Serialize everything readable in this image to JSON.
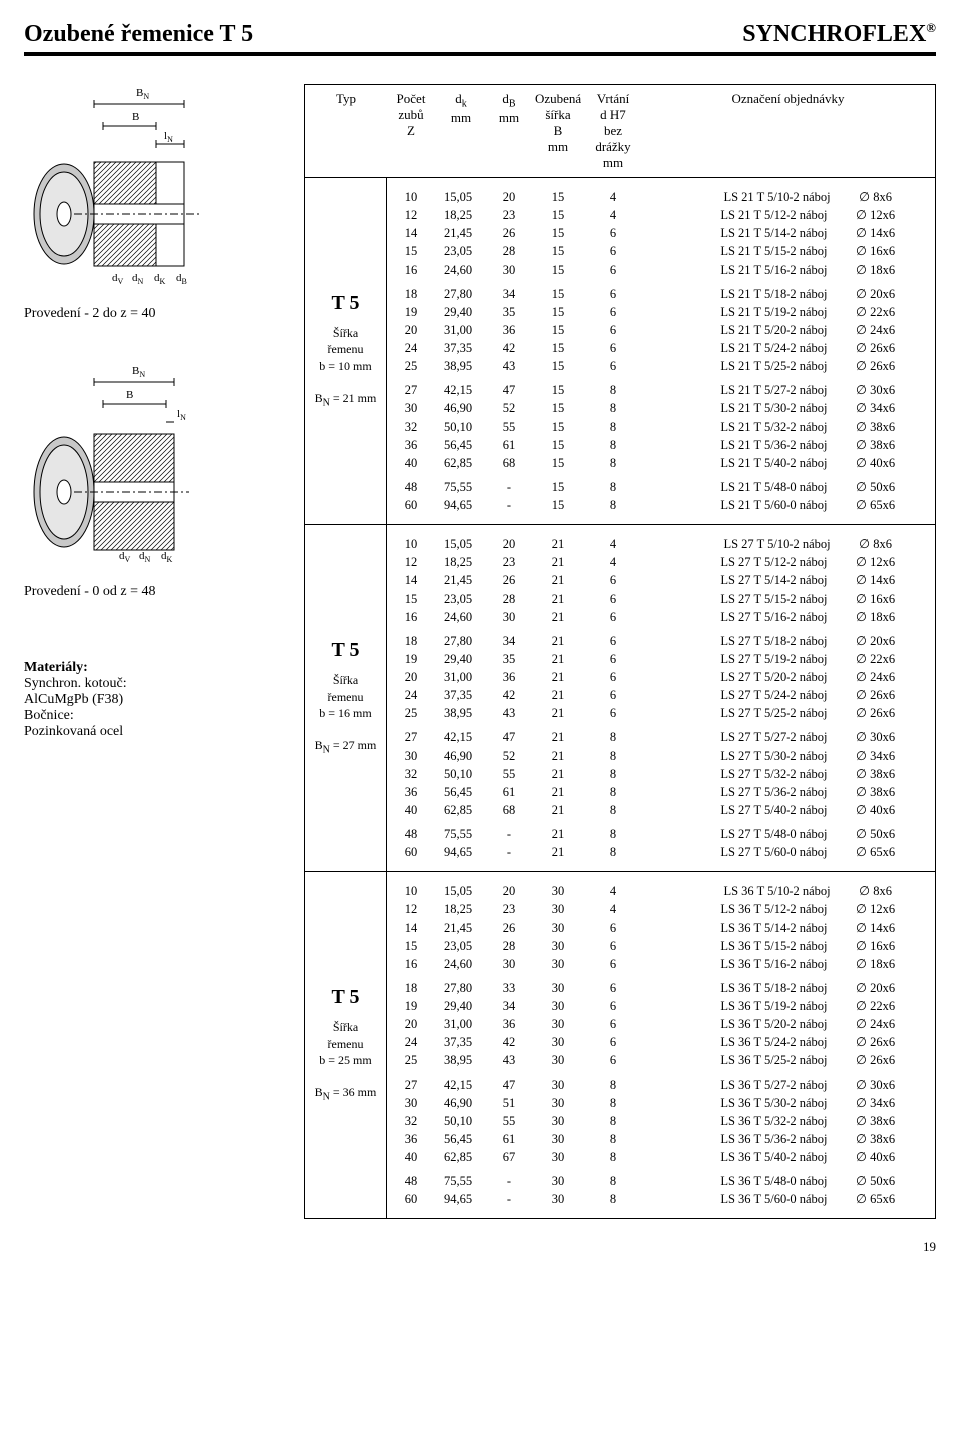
{
  "header": {
    "left": "Ozubené řemenice T 5",
    "right": "SYNCHROFLEX",
    "reg": "®"
  },
  "page_number": "19",
  "captions": {
    "prov2": "Provedení - 2 do z = 40",
    "prov0": "Provedení - 0 od z = 48"
  },
  "materials": {
    "title": "Materiály:",
    "l1": "Synchron. kotouč:",
    "l2": "AlCuMgPb (F38)",
    "l3": "Bočnice:",
    "l4": "Pozinkovaná ocel"
  },
  "diagram_labels": {
    "bn": "B",
    "bn_sub": "N",
    "b": "B",
    "ln": "l",
    "ln_sub": "N",
    "dv": "d",
    "dv_sub": "V",
    "dn": "d",
    "dn_sub": "N",
    "dk": "d",
    "dk_sub": "K",
    "db_lbl": "d",
    "db_sub": "B"
  },
  "columns": {
    "typ": "Typ",
    "z_line1": "Počet",
    "z_line2": "zubů",
    "z_line3": "Z",
    "dk_line1": "d",
    "dk_sub": "k",
    "dk_line2": "mm",
    "db_line1": "d",
    "db_sub": "B",
    "db_line2": "mm",
    "b_line1": "Ozubená",
    "b_line2": "šířka",
    "b_line3": "B",
    "b_line4": "mm",
    "v_line1": "Vrtání",
    "v_line2": "d H7",
    "v_line3": "bez",
    "v_line4": "drážky",
    "v_line5": "mm",
    "ord": "Označení objednávky"
  },
  "typedefs": [
    {
      "id": "t1",
      "big": "T 5",
      "sub1": "Šířka",
      "sub2": "řemenu",
      "sub3": "b = 10 mm",
      "sub4a": "B",
      "sub4b": "N",
      "sub4c": " = 21 mm"
    },
    {
      "id": "t2",
      "big": "T 5",
      "sub1": "Šířka",
      "sub2": "řemenu",
      "sub3": "b = 16 mm",
      "sub4a": "B",
      "sub4b": "N",
      "sub4c": " = 27 mm"
    },
    {
      "id": "t3",
      "big": "T 5",
      "sub1": "Šířka",
      "sub2": "řemenu",
      "sub3": "b = 25 mm",
      "sub4a": "B",
      "sub4b": "N",
      "sub4c": " = 36 mm"
    }
  ],
  "sections": [
    {
      "type_ref": "t1",
      "groups": [
        [
          {
            "z": "10",
            "dk": "15,05",
            "db": "20",
            "b": "15",
            "v": "4",
            "ord": "LS 21 T 5/10-2 náboj",
            "dim": "8x6"
          },
          {
            "z": "12",
            "dk": "18,25",
            "db": "23",
            "b": "15",
            "v": "4",
            "ord": "LS 21 T 5/12-2 náboj",
            "dim": "12x6"
          },
          {
            "z": "14",
            "dk": "21,45",
            "db": "26",
            "b": "15",
            "v": "6",
            "ord": "LS 21 T 5/14-2 náboj",
            "dim": "14x6"
          },
          {
            "z": "15",
            "dk": "23,05",
            "db": "28",
            "b": "15",
            "v": "6",
            "ord": "LS 21 T 5/15-2 náboj",
            "dim": "16x6"
          },
          {
            "z": "16",
            "dk": "24,60",
            "db": "30",
            "b": "15",
            "v": "6",
            "ord": "LS 21 T 5/16-2 náboj",
            "dim": "18x6"
          }
        ],
        [
          {
            "z": "18",
            "dk": "27,80",
            "db": "34",
            "b": "15",
            "v": "6",
            "ord": "LS 21 T 5/18-2 náboj",
            "dim": "20x6"
          },
          {
            "z": "19",
            "dk": "29,40",
            "db": "35",
            "b": "15",
            "v": "6",
            "ord": "LS 21 T 5/19-2 náboj",
            "dim": "22x6"
          },
          {
            "z": "20",
            "dk": "31,00",
            "db": "36",
            "b": "15",
            "v": "6",
            "ord": "LS 21 T 5/20-2 náboj",
            "dim": "24x6"
          },
          {
            "z": "24",
            "dk": "37,35",
            "db": "42",
            "b": "15",
            "v": "6",
            "ord": "LS 21 T 5/24-2 náboj",
            "dim": "26x6"
          },
          {
            "z": "25",
            "dk": "38,95",
            "db": "43",
            "b": "15",
            "v": "6",
            "ord": "LS 21 T 5/25-2 náboj",
            "dim": "26x6"
          }
        ],
        [
          {
            "z": "27",
            "dk": "42,15",
            "db": "47",
            "b": "15",
            "v": "8",
            "ord": "LS 21 T 5/27-2 náboj",
            "dim": "30x6"
          },
          {
            "z": "30",
            "dk": "46,90",
            "db": "52",
            "b": "15",
            "v": "8",
            "ord": "LS 21 T 5/30-2 náboj",
            "dim": "34x6"
          },
          {
            "z": "32",
            "dk": "50,10",
            "db": "55",
            "b": "15",
            "v": "8",
            "ord": "LS 21 T 5/32-2 náboj",
            "dim": "38x6"
          },
          {
            "z": "36",
            "dk": "56,45",
            "db": "61",
            "b": "15",
            "v": "8",
            "ord": "LS 21 T 5/36-2 náboj",
            "dim": "38x6"
          },
          {
            "z": "40",
            "dk": "62,85",
            "db": "68",
            "b": "15",
            "v": "8",
            "ord": "LS 21 T 5/40-2 náboj",
            "dim": "40x6"
          }
        ],
        [
          {
            "z": "48",
            "dk": "75,55",
            "db": "-",
            "b": "15",
            "v": "8",
            "ord": "LS 21 T 5/48-0 náboj",
            "dim": "50x6"
          },
          {
            "z": "60",
            "dk": "94,65",
            "db": "-",
            "b": "15",
            "v": "8",
            "ord": "LS 21 T 5/60-0 náboj",
            "dim": "65x6"
          }
        ]
      ]
    },
    {
      "type_ref": "t2",
      "groups": [
        [
          {
            "z": "10",
            "dk": "15,05",
            "db": "20",
            "b": "21",
            "v": "4",
            "ord": "LS 27 T 5/10-2 náboj",
            "dim": "8x6"
          },
          {
            "z": "12",
            "dk": "18,25",
            "db": "23",
            "b": "21",
            "v": "4",
            "ord": "LS 27 T 5/12-2 náboj",
            "dim": "12x6"
          },
          {
            "z": "14",
            "dk": "21,45",
            "db": "26",
            "b": "21",
            "v": "6",
            "ord": "LS 27 T 5/14-2 náboj",
            "dim": "14x6"
          },
          {
            "z": "15",
            "dk": "23,05",
            "db": "28",
            "b": "21",
            "v": "6",
            "ord": "LS 27 T 5/15-2 náboj",
            "dim": "16x6"
          },
          {
            "z": "16",
            "dk": "24,60",
            "db": "30",
            "b": "21",
            "v": "6",
            "ord": "LS 27 T 5/16-2 náboj",
            "dim": "18x6"
          }
        ],
        [
          {
            "z": "18",
            "dk": "27,80",
            "db": "34",
            "b": "21",
            "v": "6",
            "ord": "LS 27 T 5/18-2 náboj",
            "dim": "20x6"
          },
          {
            "z": "19",
            "dk": "29,40",
            "db": "35",
            "b": "21",
            "v": "6",
            "ord": "LS 27 T 5/19-2 náboj",
            "dim": "22x6"
          },
          {
            "z": "20",
            "dk": "31,00",
            "db": "36",
            "b": "21",
            "v": "6",
            "ord": "LS 27 T 5/20-2 náboj",
            "dim": "24x6"
          },
          {
            "z": "24",
            "dk": "37,35",
            "db": "42",
            "b": "21",
            "v": "6",
            "ord": "LS 27 T 5/24-2 náboj",
            "dim": "26x6"
          },
          {
            "z": "25",
            "dk": "38,95",
            "db": "43",
            "b": "21",
            "v": "6",
            "ord": "LS 27 T 5/25-2 náboj",
            "dim": "26x6"
          }
        ],
        [
          {
            "z": "27",
            "dk": "42,15",
            "db": "47",
            "b": "21",
            "v": "8",
            "ord": "LS 27 T 5/27-2 náboj",
            "dim": "30x6"
          },
          {
            "z": "30",
            "dk": "46,90",
            "db": "52",
            "b": "21",
            "v": "8",
            "ord": "LS 27 T 5/30-2 náboj",
            "dim": "34x6"
          },
          {
            "z": "32",
            "dk": "50,10",
            "db": "55",
            "b": "21",
            "v": "8",
            "ord": "LS 27 T 5/32-2 náboj",
            "dim": "38x6"
          },
          {
            "z": "36",
            "dk": "56,45",
            "db": "61",
            "b": "21",
            "v": "8",
            "ord": "LS 27 T 5/36-2 náboj",
            "dim": "38x6"
          },
          {
            "z": "40",
            "dk": "62,85",
            "db": "68",
            "b": "21",
            "v": "8",
            "ord": "LS 27 T 5/40-2 náboj",
            "dim": "40x6"
          }
        ],
        [
          {
            "z": "48",
            "dk": "75,55",
            "db": "-",
            "b": "21",
            "v": "8",
            "ord": "LS 27 T 5/48-0 náboj",
            "dim": "50x6"
          },
          {
            "z": "60",
            "dk": "94,65",
            "db": "-",
            "b": "21",
            "v": "8",
            "ord": "LS 27 T 5/60-0 náboj",
            "dim": "65x6"
          }
        ]
      ]
    },
    {
      "type_ref": "t3",
      "groups": [
        [
          {
            "z": "10",
            "dk": "15,05",
            "db": "20",
            "b": "30",
            "v": "4",
            "ord": "LS 36 T 5/10-2 náboj",
            "dim": "8x6"
          },
          {
            "z": "12",
            "dk": "18,25",
            "db": "23",
            "b": "30",
            "v": "4",
            "ord": "LS 36 T 5/12-2 náboj",
            "dim": "12x6"
          },
          {
            "z": "14",
            "dk": "21,45",
            "db": "26",
            "b": "30",
            "v": "6",
            "ord": "LS 36 T 5/14-2 náboj",
            "dim": "14x6"
          },
          {
            "z": "15",
            "dk": "23,05",
            "db": "28",
            "b": "30",
            "v": "6",
            "ord": "LS 36 T 5/15-2 náboj",
            "dim": "16x6"
          },
          {
            "z": "16",
            "dk": "24,60",
            "db": "30",
            "b": "30",
            "v": "6",
            "ord": "LS 36 T 5/16-2 náboj",
            "dim": "18x6"
          }
        ],
        [
          {
            "z": "18",
            "dk": "27,80",
            "db": "33",
            "b": "30",
            "v": "6",
            "ord": "LS 36 T 5/18-2 náboj",
            "dim": "20x6"
          },
          {
            "z": "19",
            "dk": "29,40",
            "db": "34",
            "b": "30",
            "v": "6",
            "ord": "LS 36 T 5/19-2 náboj",
            "dim": "22x6"
          },
          {
            "z": "20",
            "dk": "31,00",
            "db": "36",
            "b": "30",
            "v": "6",
            "ord": "LS 36 T 5/20-2 náboj",
            "dim": "24x6"
          },
          {
            "z": "24",
            "dk": "37,35",
            "db": "42",
            "b": "30",
            "v": "6",
            "ord": "LS 36 T 5/24-2 náboj",
            "dim": "26x6"
          },
          {
            "z": "25",
            "dk": "38,95",
            "db": "43",
            "b": "30",
            "v": "6",
            "ord": "LS 36 T 5/25-2 náboj",
            "dim": "26x6"
          }
        ],
        [
          {
            "z": "27",
            "dk": "42,15",
            "db": "47",
            "b": "30",
            "v": "8",
            "ord": "LS 36 T 5/27-2 náboj",
            "dim": "30x6"
          },
          {
            "z": "30",
            "dk": "46,90",
            "db": "51",
            "b": "30",
            "v": "8",
            "ord": "LS 36 T 5/30-2 náboj",
            "dim": "34x6"
          },
          {
            "z": "32",
            "dk": "50,10",
            "db": "55",
            "b": "30",
            "v": "8",
            "ord": "LS 36 T 5/32-2 náboj",
            "dim": "38x6"
          },
          {
            "z": "36",
            "dk": "56,45",
            "db": "61",
            "b": "30",
            "v": "8",
            "ord": "LS 36 T 5/36-2 náboj",
            "dim": "38x6"
          },
          {
            "z": "40",
            "dk": "62,85",
            "db": "67",
            "b": "30",
            "v": "8",
            "ord": "LS 36 T 5/40-2 náboj",
            "dim": "40x6"
          }
        ],
        [
          {
            "z": "48",
            "dk": "75,55",
            "db": "-",
            "b": "30",
            "v": "8",
            "ord": "LS 36 T 5/48-0 náboj",
            "dim": "50x6"
          },
          {
            "z": "60",
            "dk": "94,65",
            "db": "-",
            "b": "30",
            "v": "8",
            "ord": "LS 36 T 5/60-0 náboj",
            "dim": "65x6"
          }
        ]
      ]
    }
  ]
}
